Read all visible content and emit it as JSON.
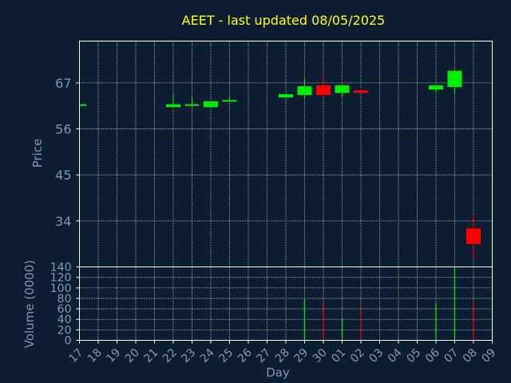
{
  "chart_data": {
    "type": "candlestick",
    "title": "AEET - last updated 08/05/2025",
    "xlabel": "Day",
    "price_panel": {
      "ylabel": "Price",
      "yticks": [
        34,
        45,
        56,
        67
      ],
      "ylim": [
        23,
        77
      ],
      "grid": true
    },
    "volume_panel": {
      "ylabel": "Volume (0000)",
      "yticks": [
        0,
        20,
        40,
        60,
        80,
        100,
        120,
        140
      ],
      "ylim": [
        0,
        140
      ],
      "grid": true
    },
    "x_tick_labels": [
      "17",
      "18",
      "19",
      "20",
      "21",
      "22",
      "23",
      "24",
      "25",
      "26",
      "27",
      "28",
      "29",
      "30",
      "01",
      "02",
      "03",
      "04",
      "05",
      "06",
      "07",
      "08",
      "09"
    ],
    "candles": [
      {
        "day": "17",
        "open": 61.7,
        "close": 61.9,
        "high": 61.9,
        "low": 61.7,
        "volume": 0
      },
      {
        "day": "22",
        "open": 61.2,
        "close": 61.9,
        "high": 64.3,
        "low": 61.2,
        "volume": 0
      },
      {
        "day": "23",
        "open": 61.7,
        "close": 61.9,
        "high": 63.5,
        "low": 61.7,
        "volume": 0
      },
      {
        "day": "24",
        "open": 61.2,
        "close": 62.6,
        "high": 62.6,
        "low": 61.2,
        "volume": 2
      },
      {
        "day": "25",
        "open": 62.6,
        "close": 62.9,
        "high": 63.5,
        "low": 62.6,
        "volume": 0
      },
      {
        "day": "28",
        "open": 63.5,
        "close": 64.3,
        "high": 64.5,
        "low": 63.5,
        "volume": 0
      },
      {
        "day": "29",
        "open": 64.1,
        "close": 66.2,
        "high": 68.0,
        "low": 63.1,
        "volume": 80
      },
      {
        "day": "30",
        "open": 66.4,
        "close": 64.1,
        "high": 69.1,
        "low": 64.1,
        "volume": 70
      },
      {
        "day": "01",
        "open": 64.6,
        "close": 66.4,
        "high": 66.7,
        "low": 63.8,
        "volume": 42
      },
      {
        "day": "02",
        "open": 65.2,
        "close": 64.6,
        "high": 65.6,
        "low": 64.3,
        "volume": 60
      },
      {
        "day": "06",
        "open": 65.4,
        "close": 66.4,
        "high": 66.7,
        "low": 64.8,
        "volume": 70
      },
      {
        "day": "07",
        "open": 66.0,
        "close": 69.9,
        "high": 69.9,
        "low": 64.1,
        "volume": 140
      },
      {
        "day": "08",
        "open": 32.2,
        "close": 28.5,
        "high": 35.5,
        "low": 25.0,
        "volume": 75
      }
    ],
    "colors": {
      "background": "#0d1e33",
      "axis_text": "#7a96b8",
      "title": "#ffff00",
      "up": "#00ee00",
      "down": "#ff0000",
      "grid": "#ffffff",
      "axis": "#ffffff"
    }
  }
}
